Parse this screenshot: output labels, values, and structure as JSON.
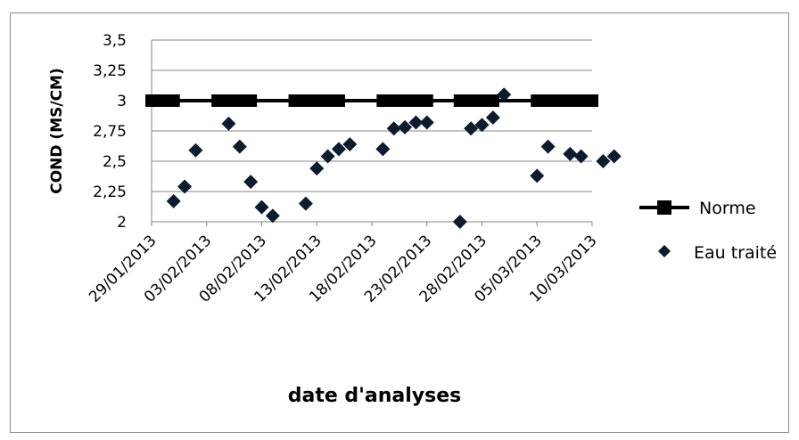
{
  "chart_data": {
    "type": "scatter",
    "title": "",
    "xlabel": "date d'analyses",
    "ylabel": "COND (MS/CM)",
    "x_is_date": true,
    "xlim": [
      "29/01/2013",
      "10/03/2013"
    ],
    "x_ticks": [
      "29/01/2013",
      "03/02/2013",
      "08/02/2013",
      "13/02/2013",
      "18/02/2013",
      "23/02/2013",
      "28/02/2013",
      "05/03/2013",
      "10/03/2013"
    ],
    "ylim": [
      2,
      3.5
    ],
    "y_ticks": [
      2,
      2.25,
      2.5,
      2.75,
      3,
      3.25,
      3.5
    ],
    "y_tick_labels": [
      "2",
      "2,25",
      "2,5",
      "2,75",
      "3",
      "3,25",
      "3,5"
    ],
    "grid": {
      "horizontal": true,
      "vertical": false
    },
    "legend_position": "right",
    "series": [
      {
        "name": "Norme",
        "marker": "square",
        "line": true,
        "color": "#000000",
        "points": [
          {
            "x": "29/01/2013",
            "y": 3
          },
          {
            "x": "30/01/2013",
            "y": 3
          },
          {
            "x": "31/01/2013",
            "y": 3
          },
          {
            "x": "04/02/2013",
            "y": 3
          },
          {
            "x": "05/02/2013",
            "y": 3
          },
          {
            "x": "06/02/2013",
            "y": 3
          },
          {
            "x": "07/02/2013",
            "y": 3
          },
          {
            "x": "11/02/2013",
            "y": 3
          },
          {
            "x": "12/02/2013",
            "y": 3
          },
          {
            "x": "13/02/2013",
            "y": 3
          },
          {
            "x": "14/02/2013",
            "y": 3
          },
          {
            "x": "15/02/2013",
            "y": 3
          },
          {
            "x": "19/02/2013",
            "y": 3
          },
          {
            "x": "20/02/2013",
            "y": 3
          },
          {
            "x": "21/02/2013",
            "y": 3
          },
          {
            "x": "22/02/2013",
            "y": 3
          },
          {
            "x": "23/02/2013",
            "y": 3
          },
          {
            "x": "26/02/2013",
            "y": 3
          },
          {
            "x": "27/02/2013",
            "y": 3
          },
          {
            "x": "28/02/2013",
            "y": 3
          },
          {
            "x": "01/03/2013",
            "y": 3
          },
          {
            "x": "05/03/2013",
            "y": 3
          },
          {
            "x": "06/03/2013",
            "y": 3
          },
          {
            "x": "07/03/2013",
            "y": 3
          },
          {
            "x": "08/03/2013",
            "y": 3
          },
          {
            "x": "09/03/2013",
            "y": 3
          },
          {
            "x": "10/03/2013",
            "y": 3
          }
        ]
      },
      {
        "name": "Eau traité",
        "marker": "diamond",
        "line": false,
        "color": "#0d1b2e",
        "points": [
          {
            "x": "31/01/2013",
            "y": 2.17
          },
          {
            "x": "01/02/2013",
            "y": 2.29
          },
          {
            "x": "02/02/2013",
            "y": 2.59
          },
          {
            "x": "05/02/2013",
            "y": 2.81
          },
          {
            "x": "06/02/2013",
            "y": 2.62
          },
          {
            "x": "07/02/2013",
            "y": 2.33
          },
          {
            "x": "08/02/2013",
            "y": 2.12
          },
          {
            "x": "09/02/2013",
            "y": 2.05
          },
          {
            "x": "12/02/2013",
            "y": 2.15
          },
          {
            "x": "13/02/2013",
            "y": 2.44
          },
          {
            "x": "14/02/2013",
            "y": 2.54
          },
          {
            "x": "15/02/2013",
            "y": 2.6
          },
          {
            "x": "16/02/2013",
            "y": 2.64
          },
          {
            "x": "19/02/2013",
            "y": 2.6
          },
          {
            "x": "20/02/2013",
            "y": 2.77
          },
          {
            "x": "21/02/2013",
            "y": 2.78
          },
          {
            "x": "22/02/2013",
            "y": 2.82
          },
          {
            "x": "23/02/2013",
            "y": 2.82
          },
          {
            "x": "26/02/2013",
            "y": 2.0
          },
          {
            "x": "27/02/2013",
            "y": 2.77
          },
          {
            "x": "28/02/2013",
            "y": 2.8
          },
          {
            "x": "01/03/2013",
            "y": 2.86
          },
          {
            "x": "02/03/2013",
            "y": 3.05
          },
          {
            "x": "05/03/2013",
            "y": 2.38
          },
          {
            "x": "06/03/2013",
            "y": 2.62
          },
          {
            "x": "08/03/2013",
            "y": 2.56
          },
          {
            "x": "09/03/2013",
            "y": 2.54
          },
          {
            "x": "11/03/2013",
            "y": 2.5
          },
          {
            "x": "12/03/2013",
            "y": 2.54
          }
        ]
      }
    ]
  }
}
